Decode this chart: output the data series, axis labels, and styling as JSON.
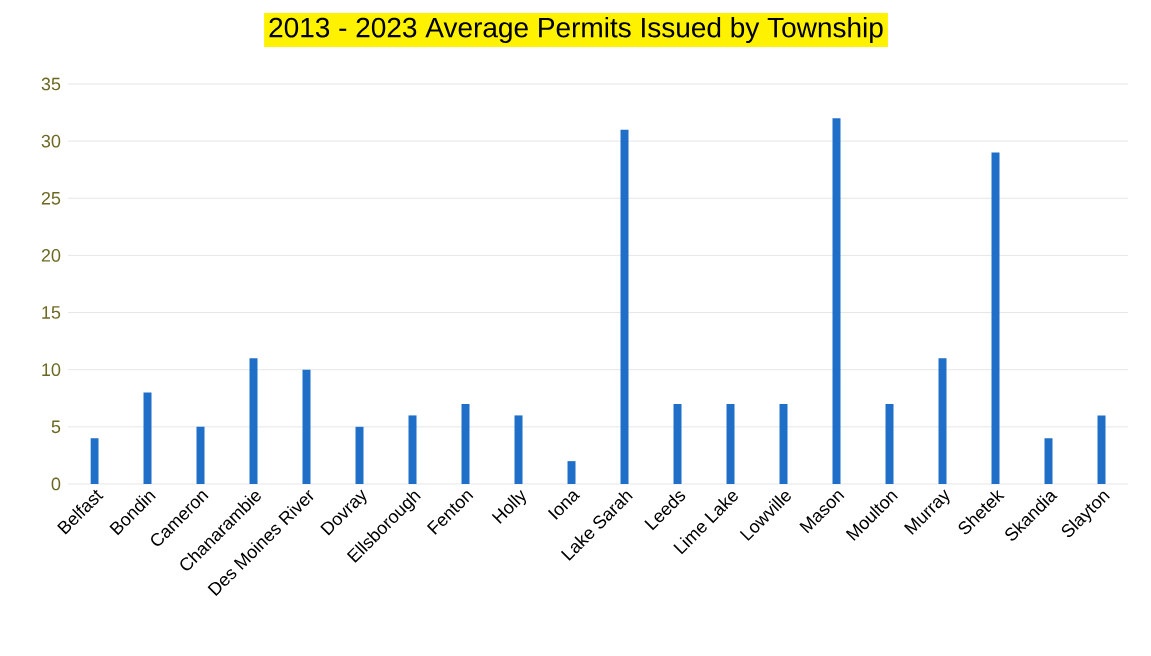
{
  "chart_data": {
    "type": "bar",
    "title": "2013 - 2023 Average Permits Issued by Township",
    "categories": [
      "Belfast",
      "Bondin",
      "Cameron",
      "Chanarambie",
      "Des Moines River",
      "Dovray",
      "Ellsborough",
      "Fenton",
      "Holly",
      "Iona",
      "Lake Sarah",
      "Leeds",
      "Lime Lake",
      "Lowville",
      "Mason",
      "Moulton",
      "Murray",
      "Shetek",
      "Skandia",
      "Slayton"
    ],
    "values": [
      4,
      8,
      5,
      11,
      10,
      5,
      6,
      7,
      6,
      2,
      31,
      7,
      7,
      7,
      32,
      7,
      11,
      29,
      4,
      6
    ],
    "color": "#1f6fc8",
    "ylim": [
      0,
      35
    ],
    "yticks": [
      0,
      5,
      10,
      15,
      20,
      25,
      30,
      35
    ],
    "grid": "y"
  }
}
